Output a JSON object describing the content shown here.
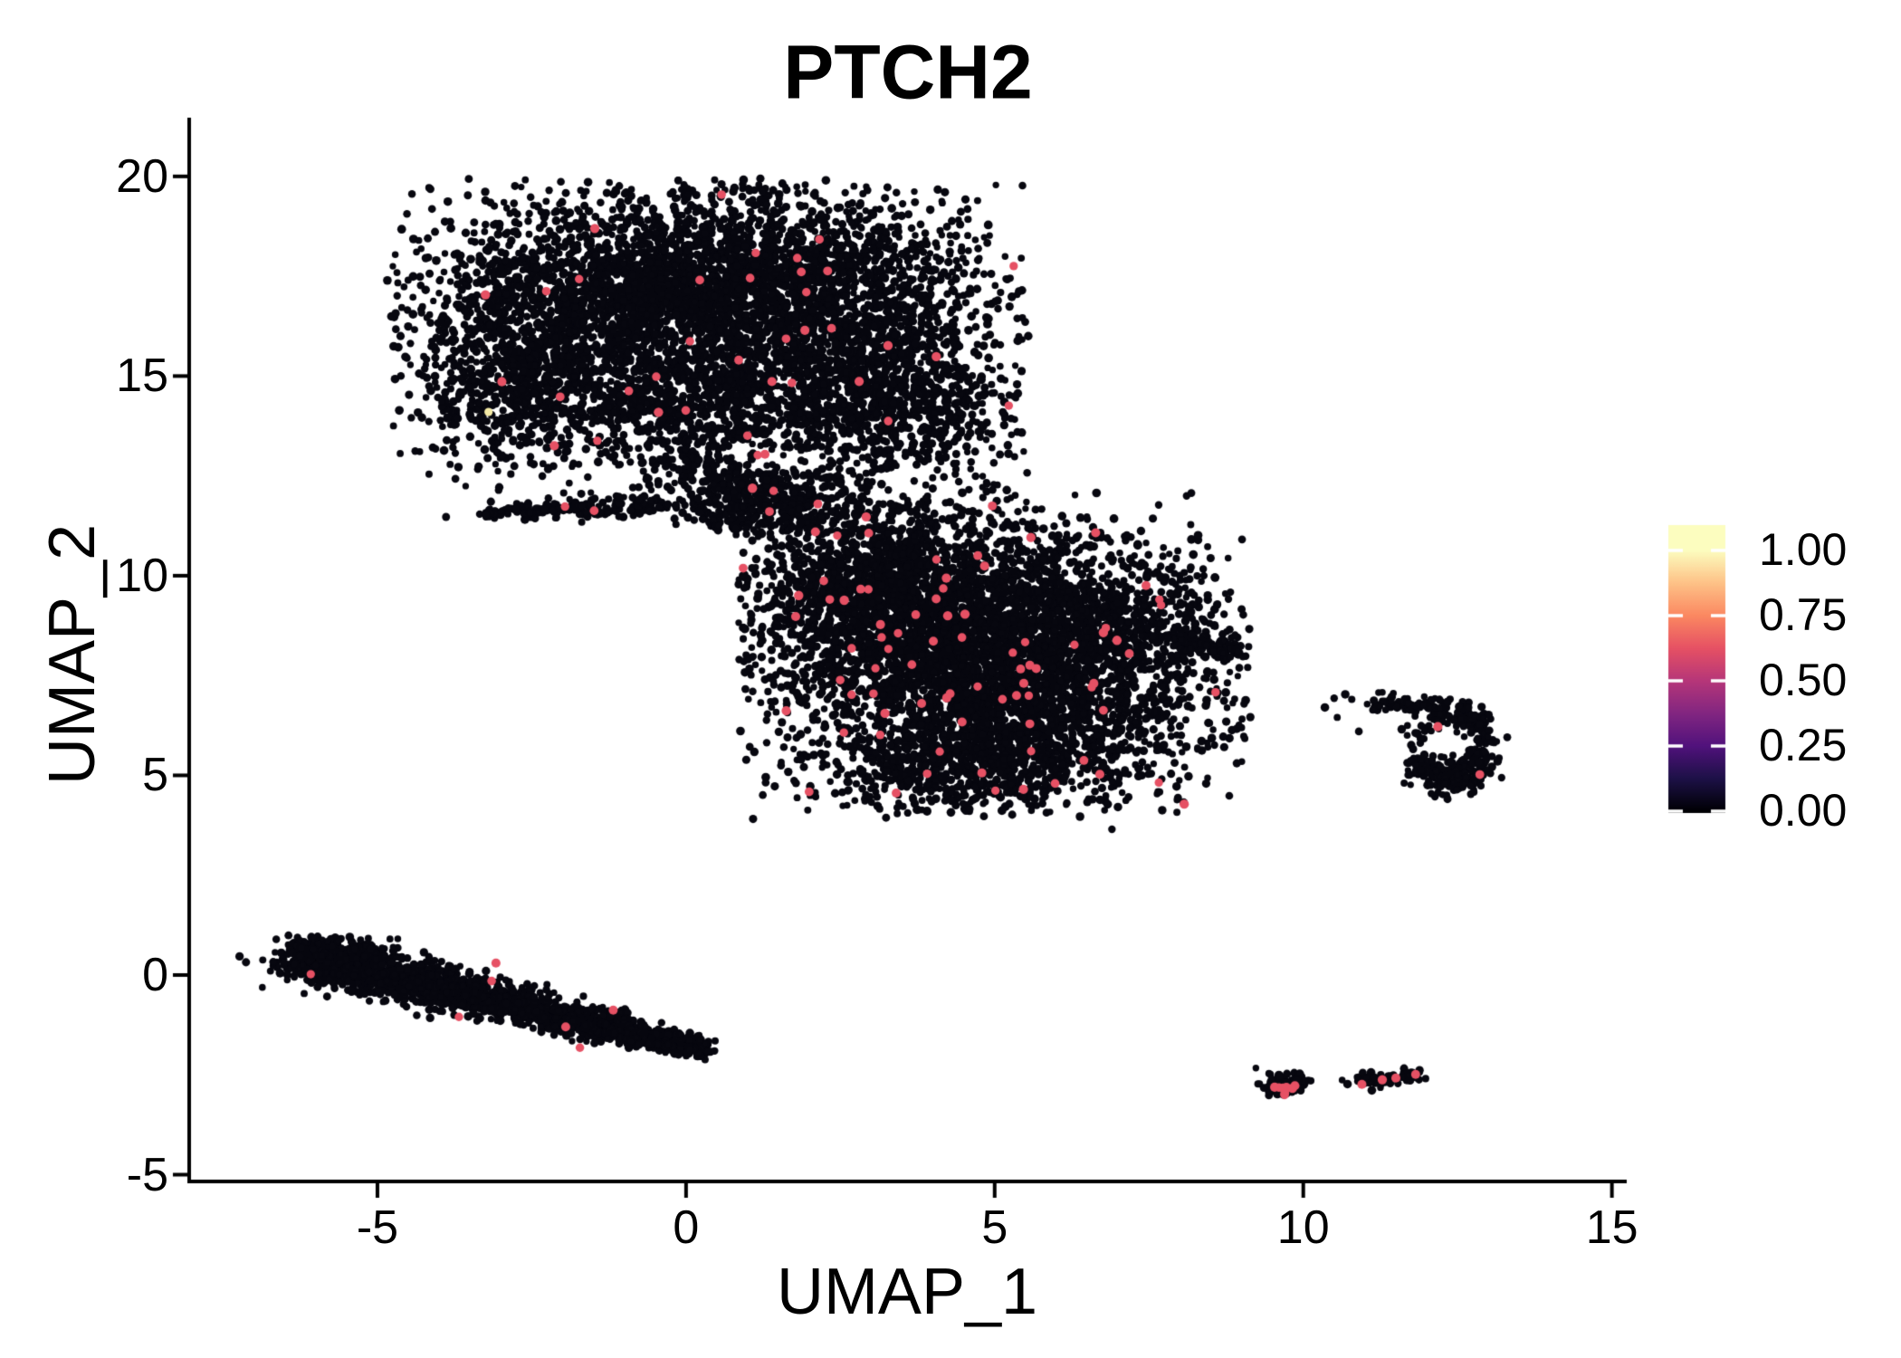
{
  "figure": {
    "title": "PTCH2",
    "x_axis": {
      "label": "UMAP_1",
      "tick_labels": [
        "-5",
        "0",
        "5",
        "10",
        "15"
      ],
      "tick_values": [
        -5,
        0,
        5,
        10,
        15
      ]
    },
    "y_axis": {
      "label": "UMAP_2",
      "tick_labels": [
        "-5",
        "0",
        "5",
        "10",
        "15",
        "20"
      ],
      "tick_values": [
        -5,
        0,
        5,
        10,
        15,
        20
      ]
    },
    "colorbar": {
      "tick_labels_top_to_bottom": [
        "1.00",
        "0.75",
        "0.50",
        "0.25",
        "0.00"
      ],
      "tick_values": [
        1.0,
        0.75,
        0.5,
        0.25,
        0.0
      ],
      "gradient_colors_low_to_high": [
        "#000004",
        "#1D1147",
        "#51127C",
        "#822681",
        "#B63679",
        "#E65164",
        "#FB8861",
        "#FEC287",
        "#FCFDBF"
      ]
    }
  },
  "colors": {
    "background": "#FFFFFF",
    "axis": "#000000",
    "text": "#000000",
    "point_zero": "#07070F",
    "point_expressing": "#E65164",
    "point_max": "#F3E9A5",
    "colorbar_tick_marks": "#FFFFFF"
  },
  "chart_data": {
    "type": "scatter",
    "title": "PTCH2",
    "xlabel": "UMAP_1",
    "ylabel": "UMAP_2",
    "xlim": [
      -8.05,
      15.24
    ],
    "ylim": [
      -5.17,
      21.47
    ],
    "x_ticks": [
      -5,
      0,
      5,
      10,
      15
    ],
    "y_ticks": [
      -5,
      0,
      5,
      10,
      15,
      20
    ],
    "grid": false,
    "legend_position": "right",
    "colormap": "magma",
    "value_range": [
      0,
      1
    ],
    "description": "UMAP feature plot of PTCH2 expression; most cells have zero expression (near-black), sparse expressing cells (~0.6) in rose, one near-max cell in pale yellow.",
    "clusters": [
      {
        "name": "top-left-cluster",
        "pink_fraction": 0.006,
        "clip": {
          "xmin": -4.85,
          "xmax": 5.55,
          "ymin": 11.0,
          "ymax": 19.95
        },
        "specs": [
          {
            "kind": "gauss",
            "cx": -1.6,
            "cy": 16.6,
            "sx": 1.45,
            "sy": 1.35,
            "n": 1700
          },
          {
            "kind": "gauss",
            "cx": 0.9,
            "cy": 17.4,
            "sx": 1.5,
            "sy": 1.15,
            "n": 1500
          },
          {
            "kind": "gauss",
            "cx": 2.8,
            "cy": 16.2,
            "sx": 1.15,
            "sy": 1.5,
            "n": 1100
          },
          {
            "kind": "gauss",
            "cx": 3.6,
            "cy": 14.1,
            "sx": 0.95,
            "sy": 0.85,
            "n": 520
          },
          {
            "kind": "gauss",
            "cx": 0.2,
            "cy": 14.4,
            "sx": 1.35,
            "sy": 0.85,
            "n": 750
          },
          {
            "kind": "gauss",
            "cx": -2.9,
            "cy": 14.6,
            "sx": 0.75,
            "sy": 0.9,
            "n": 420
          },
          {
            "kind": "gauss",
            "cx": 0.5,
            "cy": 16.4,
            "sx": 2.7,
            "sy": 2.3,
            "n": 480
          },
          {
            "kind": "gauss",
            "cx": 0.9,
            "cy": 11.9,
            "sx": 0.55,
            "sy": 0.45,
            "n": 160
          },
          {
            "kind": "line",
            "x1": -3.35,
            "y1": 11.55,
            "x2": -0.45,
            "y2": 11.82,
            "n": 170,
            "jitter": 0.18,
            "taper": "start"
          },
          {
            "kind": "line",
            "x1": -0.2,
            "y1": 13.05,
            "x2": 1.7,
            "y2": 11.45,
            "n": 200,
            "jitter": 0.4
          },
          {
            "kind": "box",
            "x1": 0.2,
            "y1": 11.05,
            "x2": 3.1,
            "y2": 12.6,
            "n": 240
          }
        ]
      },
      {
        "name": "middle-cluster",
        "pink_fraction": 0.013,
        "clip": {
          "xmin": 0.85,
          "xmax": 9.15,
          "ymin": 3.9,
          "ymax": 12.15
        },
        "specs": [
          {
            "kind": "gauss",
            "cx": 4.0,
            "cy": 8.8,
            "sx": 1.5,
            "sy": 1.4,
            "n": 1900
          },
          {
            "kind": "gauss",
            "cx": 5.6,
            "cy": 6.9,
            "sx": 1.5,
            "sy": 1.25,
            "n": 1700
          },
          {
            "kind": "gauss",
            "cx": 3.1,
            "cy": 9.8,
            "sx": 1.05,
            "sy": 0.95,
            "n": 800
          },
          {
            "kind": "gauss",
            "cx": 6.5,
            "cy": 9.0,
            "sx": 1.05,
            "sy": 0.95,
            "n": 650
          },
          {
            "kind": "gauss",
            "cx": 4.4,
            "cy": 5.3,
            "sx": 1.3,
            "sy": 0.7,
            "n": 550
          },
          {
            "kind": "gauss",
            "cx": 4.9,
            "cy": 8.1,
            "sx": 2.3,
            "sy": 2.2,
            "n": 450
          },
          {
            "kind": "line",
            "x1": 7.8,
            "y1": 8.6,
            "x2": 8.95,
            "y2": 8.05,
            "n": 110,
            "jitter": 0.2,
            "taper": "end"
          }
        ]
      },
      {
        "name": "right-ring-cluster",
        "pink_points": [
          [
            12.18,
            6.22
          ],
          [
            12.86,
            5.02
          ]
        ],
        "specs": [
          {
            "kind": "ring",
            "cx": 12.32,
            "cy": 5.78,
            "r": 0.62,
            "rj": 0.15,
            "ymult": 1.35,
            "gap_start": 115,
            "gap_end": 205,
            "gap_keep": 0.22,
            "n": 300
          },
          {
            "kind": "line",
            "x1": 11.0,
            "y1": 6.88,
            "x2": 12.08,
            "y2": 6.72,
            "n": 55,
            "jitter": 0.1
          },
          {
            "kind": "gauss",
            "cx": 12.5,
            "cy": 4.92,
            "sx": 0.22,
            "sy": 0.26,
            "n": 70
          },
          {
            "kind": "points",
            "pts": [
              [
                10.5,
                6.93
              ],
              [
                10.68,
                7.03
              ],
              [
                10.55,
                6.45
              ],
              [
                10.9,
                6.1
              ],
              [
                11.28,
                7.08
              ],
              [
                10.35,
                6.7
              ]
            ]
          }
        ]
      },
      {
        "name": "bottom-left-band",
        "clip": {
          "ymax": 1.05
        },
        "pink_points": [
          [
            -6.08,
            0.02
          ],
          [
            -3.08,
            0.3
          ],
          [
            -3.15,
            -0.15
          ],
          [
            -3.68,
            -1.05
          ],
          [
            -1.95,
            -1.3
          ],
          [
            -1.18,
            -0.88
          ],
          [
            -1.72,
            -1.82
          ]
        ],
        "specs": [
          {
            "kind": "band",
            "x1": -6.35,
            "y1": 0.55,
            "x2": 0.3,
            "y2": -1.85,
            "w0": 0.36,
            "w1": 0.12,
            "n": 1850
          },
          {
            "kind": "band",
            "x1": -6.3,
            "y1": 0.45,
            "x2": 0.1,
            "y2": -1.9,
            "w0": 0.18,
            "w1": 0.07,
            "n": 480
          },
          {
            "kind": "gauss",
            "cx": -5.7,
            "cy": 0.4,
            "sx": 0.5,
            "sy": 0.27,
            "n": 230
          }
        ]
      },
      {
        "name": "bottom-right-cluster-a",
        "pink_specs": [
          {
            "kind": "gauss",
            "cx": 9.73,
            "cy": -2.86,
            "sx": 0.12,
            "sy": 0.08,
            "n": 9
          }
        ],
        "specs": [
          {
            "kind": "gauss",
            "cx": 9.7,
            "cy": -2.72,
            "sx": 0.2,
            "sy": 0.13,
            "n": 95
          },
          {
            "kind": "gauss",
            "cx": 9.52,
            "cy": -2.98,
            "sx": 0.08,
            "sy": 0.05,
            "n": 8
          },
          {
            "kind": "points",
            "pts": [
              [
                10.63,
                -2.63
              ]
            ]
          }
        ]
      },
      {
        "name": "bottom-right-cluster-b",
        "pink_points": [
          [
            10.95,
            -2.74
          ],
          [
            11.28,
            -2.62
          ],
          [
            11.5,
            -2.58
          ],
          [
            11.82,
            -2.49
          ]
        ],
        "specs": [
          {
            "kind": "line",
            "x1": 10.78,
            "y1": -2.73,
            "x2": 11.85,
            "y2": -2.47,
            "n": 62,
            "jitter": 0.09
          }
        ]
      },
      {
        "name": "isolated-points",
        "specs": [
          {
            "kind": "points",
            "pts": [
              [
                6.9,
                3.65
              ]
            ]
          }
        ]
      }
    ],
    "special_points": [
      {
        "x": -3.2,
        "y": 14.1,
        "value": 0.97
      }
    ]
  }
}
